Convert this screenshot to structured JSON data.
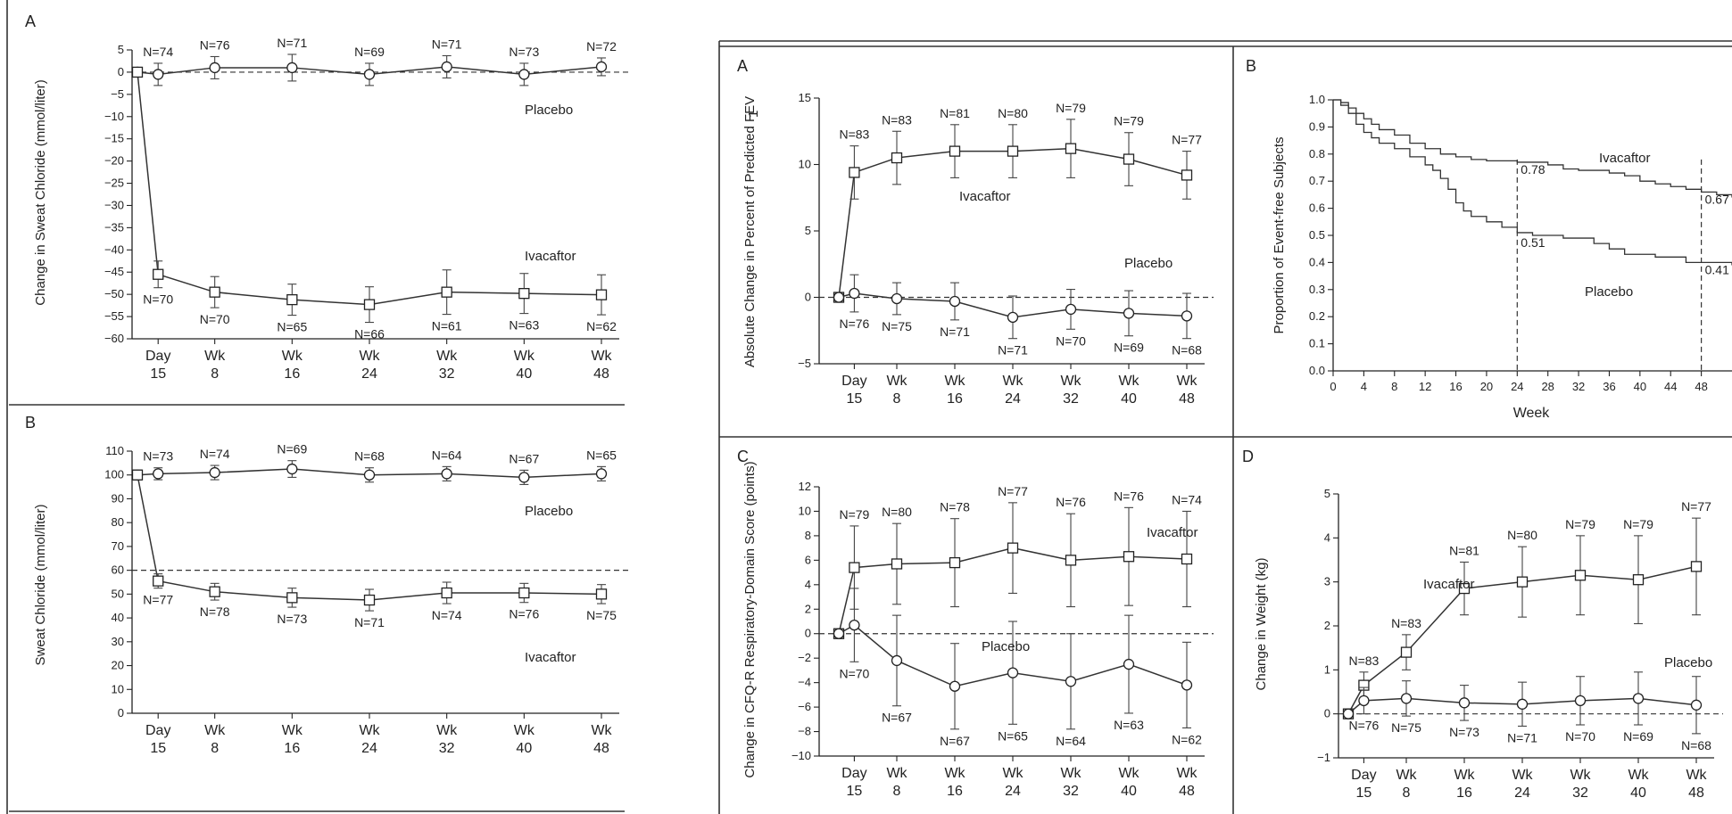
{
  "chart_data": [
    {
      "panel": "A",
      "group": "left",
      "type": "line",
      "ylabel": "Change in Sweat Chloride (mmol/liter)",
      "ylim": [
        -60,
        5
      ],
      "yticks": [
        5,
        0,
        -5,
        -10,
        -15,
        -20,
        -25,
        -30,
        -35,
        -40,
        -45,
        -50,
        -55,
        -60
      ],
      "categories": [
        [
          "Day",
          "15"
        ],
        [
          "Wk",
          "8"
        ],
        [
          "Wk",
          "16"
        ],
        [
          "Wk",
          "24"
        ],
        [
          "Wk",
          "32"
        ],
        [
          "Wk",
          "40"
        ],
        [
          "Wk",
          "48"
        ]
      ],
      "x": [
        0,
        15,
        56,
        112,
        168,
        224,
        280,
        336
      ],
      "refline": 0,
      "series": [
        {
          "name": "Placebo",
          "marker": "circle",
          "values": [
            0,
            -0.5,
            1.0,
            1.0,
            -0.5,
            1.2,
            -0.5,
            1.2
          ],
          "err": [
            0,
            2.5,
            2.5,
            3,
            2.5,
            2.5,
            2.5,
            2
          ],
          "n": [
            "",
            "N=74",
            "N=76",
            "N=71",
            "N=69",
            "N=71",
            "N=73",
            "N=72"
          ]
        },
        {
          "name": "Ivacaftor",
          "marker": "square",
          "values": [
            0,
            -45.5,
            -49.5,
            -51.2,
            -52.3,
            -49.5,
            -49.8,
            -50.1
          ],
          "err": [
            0,
            3,
            3.5,
            3.5,
            4,
            5,
            4.5,
            4.5
          ],
          "n": [
            "",
            "N=70",
            "N=70",
            "N=65",
            "N=66",
            "N=61",
            "N=63",
            "N=62"
          ]
        }
      ]
    },
    {
      "panel": "B",
      "group": "left",
      "type": "line",
      "ylabel": "Sweat Chloride (mmol/liter)",
      "ylim": [
        0,
        110
      ],
      "yticks": [
        110,
        100,
        90,
        80,
        70,
        60,
        50,
        40,
        30,
        20,
        10,
        0
      ],
      "categories": [
        [
          "Day",
          "15"
        ],
        [
          "Wk",
          "8"
        ],
        [
          "Wk",
          "16"
        ],
        [
          "Wk",
          "24"
        ],
        [
          "Wk",
          "32"
        ],
        [
          "Wk",
          "40"
        ],
        [
          "Wk",
          "48"
        ]
      ],
      "x": [
        0,
        15,
        56,
        112,
        168,
        224,
        280,
        336
      ],
      "refline": 60,
      "series": [
        {
          "name": "Placebo",
          "marker": "circle",
          "values": [
            100,
            100.5,
            101,
            102.5,
            100,
            100.5,
            99,
            100.5
          ],
          "err": [
            2,
            2.5,
            3,
            3.5,
            3,
            3,
            3,
            3
          ],
          "n": [
            "",
            "N=73",
            "N=74",
            "N=69",
            "N=68",
            "N=64",
            "N=67",
            "N=65"
          ]
        },
        {
          "name": "Ivacaftor",
          "marker": "square",
          "values": [
            100,
            55.5,
            51,
            48.5,
            47.5,
            50.5,
            50.5,
            50
          ],
          "err": [
            2,
            3,
            3.5,
            4,
            4.5,
            4.5,
            4,
            4
          ],
          "n": [
            "",
            "N=77",
            "N=78",
            "N=73",
            "N=71",
            "N=74",
            "N=76",
            "N=75"
          ]
        }
      ]
    },
    {
      "panel": "A",
      "group": "right",
      "type": "line",
      "ylabel": "Absolute Change in Percent of Predicted FEV",
      "ylabel_sub": "1",
      "ylim": [
        -5,
        15
      ],
      "yticks": [
        15,
        10,
        5,
        0,
        -5
      ],
      "categories": [
        [
          "Day",
          "15"
        ],
        [
          "Wk",
          "8"
        ],
        [
          "Wk",
          "16"
        ],
        [
          "Wk",
          "24"
        ],
        [
          "Wk",
          "32"
        ],
        [
          "Wk",
          "40"
        ],
        [
          "Wk",
          "48"
        ]
      ],
      "x": [
        0,
        15,
        56,
        112,
        168,
        224,
        280,
        336
      ],
      "refline": 0,
      "series": [
        {
          "name": "Ivacaftor",
          "marker": "square",
          "values": [
            0,
            9.4,
            10.5,
            11.0,
            11.0,
            11.2,
            10.4,
            9.2
          ],
          "err": [
            0,
            2,
            2,
            2,
            2,
            2.2,
            2,
            1.8
          ],
          "n": [
            "",
            "N=83",
            "N=83",
            "N=81",
            "N=80",
            "N=79",
            "N=79",
            "N=77"
          ]
        },
        {
          "name": "Placebo",
          "marker": "circle",
          "values": [
            0,
            0.3,
            -0.1,
            -0.3,
            -1.5,
            -0.9,
            -1.2,
            -1.4
          ],
          "err": [
            0,
            1.4,
            1.2,
            1.4,
            1.6,
            1.5,
            1.7,
            1.7
          ],
          "n": [
            "",
            "N=76",
            "N=75",
            "N=71",
            "N=71",
            "N=70",
            "N=69",
            "N=68"
          ]
        }
      ]
    },
    {
      "panel": "B",
      "group": "right",
      "type": "line",
      "subtype": "kaplan-meier",
      "ylabel": "Proportion of Event-free Subjects",
      "xlabel": "Week",
      "ylim": [
        0,
        1.0
      ],
      "xlim": [
        0,
        52
      ],
      "yticks": [
        "1.0",
        "0.9",
        "0.8",
        "0.7",
        "0.6",
        "0.5",
        "0.4",
        "0.3",
        "0.2",
        "0.1",
        "0.0"
      ],
      "xticks": [
        0,
        4,
        8,
        12,
        16,
        20,
        24,
        28,
        32,
        36,
        40,
        44,
        48
      ],
      "series": [
        {
          "name": "Ivacaftor",
          "points": [
            [
              0,
              1.0
            ],
            [
              1,
              0.99
            ],
            [
              2,
              0.97
            ],
            [
              3,
              0.95
            ],
            [
              4,
              0.93
            ],
            [
              5,
              0.91
            ],
            [
              6,
              0.89
            ],
            [
              8,
              0.87
            ],
            [
              10,
              0.84
            ],
            [
              12,
              0.82
            ],
            [
              14,
              0.8
            ],
            [
              16,
              0.79
            ],
            [
              18,
              0.78
            ],
            [
              20,
              0.775
            ],
            [
              24,
              0.77
            ],
            [
              28,
              0.76
            ],
            [
              30,
              0.745
            ],
            [
              32,
              0.74
            ],
            [
              36,
              0.73
            ],
            [
              38,
              0.72
            ],
            [
              40,
              0.7
            ],
            [
              42,
              0.69
            ],
            [
              44,
              0.68
            ],
            [
              46,
              0.67
            ],
            [
              48,
              0.66
            ],
            [
              50,
              0.65
            ],
            [
              52,
              0.64
            ]
          ]
        },
        {
          "name": "Placebo",
          "points": [
            [
              0,
              1.0
            ],
            [
              1,
              0.98
            ],
            [
              2,
              0.95
            ],
            [
              3,
              0.91
            ],
            [
              4,
              0.88
            ],
            [
              5,
              0.86
            ],
            [
              6,
              0.84
            ],
            [
              8,
              0.82
            ],
            [
              10,
              0.79
            ],
            [
              12,
              0.76
            ],
            [
              13,
              0.74
            ],
            [
              14,
              0.71
            ],
            [
              15,
              0.67
            ],
            [
              16,
              0.62
            ],
            [
              17,
              0.59
            ],
            [
              18,
              0.57
            ],
            [
              20,
              0.55
            ],
            [
              22,
              0.53
            ],
            [
              24,
              0.51
            ],
            [
              26,
              0.5
            ],
            [
              30,
              0.49
            ],
            [
              34,
              0.47
            ],
            [
              36,
              0.45
            ],
            [
              38,
              0.43
            ],
            [
              42,
              0.42
            ],
            [
              46,
              0.4
            ],
            [
              48,
              0.4
            ],
            [
              52,
              0.39
            ]
          ]
        }
      ],
      "annotations": [
        {
          "text": "0.78",
          "x": 24,
          "y": 0.78
        },
        {
          "text": "0.51",
          "x": 24,
          "y": 0.51
        },
        {
          "text": "0.67",
          "x": 48,
          "y": 0.67
        },
        {
          "text": "0.41",
          "x": 48,
          "y": 0.41
        }
      ]
    },
    {
      "panel": "C",
      "group": "right",
      "type": "line",
      "ylabel": "Change in CFQ-R Respiratory-Domain Score (points)",
      "ylim": [
        -10,
        12
      ],
      "yticks": [
        12,
        10,
        8,
        6,
        4,
        2,
        0,
        -2,
        -4,
        -6,
        -8,
        -10
      ],
      "categories": [
        [
          "Day",
          "15"
        ],
        [
          "Wk",
          "8"
        ],
        [
          "Wk",
          "16"
        ],
        [
          "Wk",
          "24"
        ],
        [
          "Wk",
          "32"
        ],
        [
          "Wk",
          "40"
        ],
        [
          "Wk",
          "48"
        ]
      ],
      "x": [
        0,
        15,
        56,
        112,
        168,
        224,
        280,
        336
      ],
      "refline": 0,
      "series": [
        {
          "name": "Ivacaftor",
          "marker": "square",
          "values": [
            0,
            5.4,
            5.7,
            5.8,
            7.0,
            6.0,
            6.3,
            6.1
          ],
          "err": [
            0,
            3.4,
            3.3,
            3.6,
            3.7,
            3.8,
            4.0,
            3.9
          ],
          "n": [
            "",
            "N=79",
            "N=80",
            "N=78",
            "N=77",
            "N=76",
            "N=76",
            "N=74"
          ]
        },
        {
          "name": "Placebo",
          "marker": "circle",
          "values": [
            0,
            0.7,
            -2.2,
            -4.3,
            -3.2,
            -3.9,
            -2.5,
            -4.2
          ],
          "err": [
            0,
            3,
            3.7,
            3.5,
            4.2,
            3.9,
            4.0,
            3.5
          ],
          "n": [
            "",
            "N=70",
            "N=67",
            "N=67",
            "N=65",
            "N=64",
            "N=63",
            "N=62"
          ]
        }
      ]
    },
    {
      "panel": "D",
      "group": "right",
      "type": "line",
      "ylabel": "Change in Weight (kg)",
      "ylim": [
        -1,
        5
      ],
      "yticks": [
        5,
        4,
        3,
        2,
        1,
        0,
        -1
      ],
      "categories": [
        [
          "Day",
          "15"
        ],
        [
          "Wk",
          "8"
        ],
        [
          "Wk",
          "16"
        ],
        [
          "Wk",
          "24"
        ],
        [
          "Wk",
          "32"
        ],
        [
          "Wk",
          "40"
        ],
        [
          "Wk",
          "48"
        ]
      ],
      "x": [
        0,
        15,
        56,
        112,
        168,
        224,
        280,
        336
      ],
      "refline": 0,
      "series": [
        {
          "name": "Ivacaftor",
          "marker": "square",
          "values": [
            0,
            0.65,
            1.4,
            2.85,
            3.0,
            3.15,
            3.05,
            3.35
          ],
          "err": [
            0,
            0.3,
            0.4,
            0.6,
            0.8,
            0.9,
            1.0,
            1.1
          ],
          "n": [
            "",
            "N=83",
            "N=83",
            "N=81",
            "N=80",
            "N=79",
            "N=79",
            "N=77"
          ]
        },
        {
          "name": "Placebo",
          "marker": "circle",
          "values": [
            0,
            0.3,
            0.35,
            0.25,
            0.22,
            0.3,
            0.35,
            0.2
          ],
          "err": [
            0,
            0.3,
            0.4,
            0.4,
            0.5,
            0.55,
            0.6,
            0.65
          ],
          "n": [
            "",
            "N=76",
            "N=75",
            "N=73",
            "N=71",
            "N=70",
            "N=69",
            "N=68"
          ]
        }
      ]
    }
  ]
}
